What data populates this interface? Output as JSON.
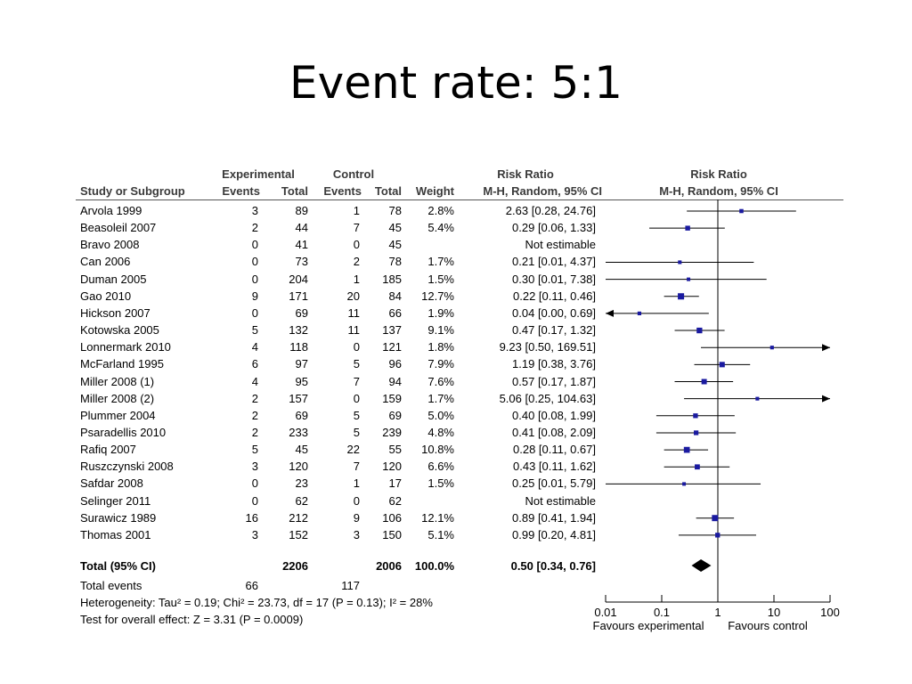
{
  "title": "Event rate: 5:1",
  "table": {
    "group_headers": {
      "experimental": "Experimental",
      "control": "Control",
      "risk_ratio_text": "Risk Ratio",
      "risk_ratio_plot": "Risk Ratio"
    },
    "columns": {
      "study": "Study or Subgroup",
      "exp_events": "Events",
      "exp_total": "Total",
      "ctl_events": "Events",
      "ctl_total": "Total",
      "weight": "Weight",
      "rr_text": "M-H, Random, 95% CI",
      "rr_plot": "M-H, Random, 95% CI"
    },
    "rows": [
      {
        "study": "Arvola 1999",
        "exp_events": "3",
        "exp_total": "89",
        "ctl_events": "1",
        "ctl_total": "78",
        "weight": "2.8%",
        "ci_text": "2.63 [0.28, 24.76]"
      },
      {
        "study": "Beasoleil 2007",
        "exp_events": "2",
        "exp_total": "44",
        "ctl_events": "7",
        "ctl_total": "45",
        "weight": "5.4%",
        "ci_text": "0.29 [0.06, 1.33]"
      },
      {
        "study": "Bravo 2008",
        "exp_events": "0",
        "exp_total": "41",
        "ctl_events": "0",
        "ctl_total": "45",
        "weight": "",
        "ci_text": "Not estimable"
      },
      {
        "study": "Can 2006",
        "exp_events": "0",
        "exp_total": "73",
        "ctl_events": "2",
        "ctl_total": "78",
        "weight": "1.7%",
        "ci_text": "0.21 [0.01, 4.37]"
      },
      {
        "study": "Duman 2005",
        "exp_events": "0",
        "exp_total": "204",
        "ctl_events": "1",
        "ctl_total": "185",
        "weight": "1.5%",
        "ci_text": "0.30 [0.01, 7.38]"
      },
      {
        "study": "Gao 2010",
        "exp_events": "9",
        "exp_total": "171",
        "ctl_events": "20",
        "ctl_total": "84",
        "weight": "12.7%",
        "ci_text": "0.22 [0.11, 0.46]"
      },
      {
        "study": "Hickson 2007",
        "exp_events": "0",
        "exp_total": "69",
        "ctl_events": "11",
        "ctl_total": "66",
        "weight": "1.9%",
        "ci_text": "0.04 [0.00, 0.69]"
      },
      {
        "study": "Kotowska 2005",
        "exp_events": "5",
        "exp_total": "132",
        "ctl_events": "11",
        "ctl_total": "137",
        "weight": "9.1%",
        "ci_text": "0.47 [0.17, 1.32]"
      },
      {
        "study": "Lonnermark 2010",
        "exp_events": "4",
        "exp_total": "118",
        "ctl_events": "0",
        "ctl_total": "121",
        "weight": "1.8%",
        "ci_text": "9.23 [0.50, 169.51]"
      },
      {
        "study": "McFarland 1995",
        "exp_events": "6",
        "exp_total": "97",
        "ctl_events": "5",
        "ctl_total": "96",
        "weight": "7.9%",
        "ci_text": "1.19 [0.38, 3.76]"
      },
      {
        "study": "Miller 2008 (1)",
        "exp_events": "4",
        "exp_total": "95",
        "ctl_events": "7",
        "ctl_total": "94",
        "weight": "7.6%",
        "ci_text": "0.57 [0.17, 1.87]"
      },
      {
        "study": "Miller 2008 (2)",
        "exp_events": "2",
        "exp_total": "157",
        "ctl_events": "0",
        "ctl_total": "159",
        "weight": "1.7%",
        "ci_text": "5.06 [0.25, 104.63]"
      },
      {
        "study": "Plummer 2004",
        "exp_events": "2",
        "exp_total": "69",
        "ctl_events": "5",
        "ctl_total": "69",
        "weight": "5.0%",
        "ci_text": "0.40 [0.08, 1.99]"
      },
      {
        "study": "Psaradellis 2010",
        "exp_events": "2",
        "exp_total": "233",
        "ctl_events": "5",
        "ctl_total": "239",
        "weight": "4.8%",
        "ci_text": "0.41 [0.08, 2.09]"
      },
      {
        "study": "Rafiq 2007",
        "exp_events": "5",
        "exp_total": "45",
        "ctl_events": "22",
        "ctl_total": "55",
        "weight": "10.8%",
        "ci_text": "0.28 [0.11, 0.67]"
      },
      {
        "study": "Ruszczynski 2008",
        "exp_events": "3",
        "exp_total": "120",
        "ctl_events": "7",
        "ctl_total": "120",
        "weight": "6.6%",
        "ci_text": "0.43 [0.11, 1.62]"
      },
      {
        "study": "Safdar 2008",
        "exp_events": "0",
        "exp_total": "23",
        "ctl_events": "1",
        "ctl_total": "17",
        "weight": "1.5%",
        "ci_text": "0.25 [0.01, 5.79]"
      },
      {
        "study": "Selinger 2011",
        "exp_events": "0",
        "exp_total": "62",
        "ctl_events": "0",
        "ctl_total": "62",
        "weight": "",
        "ci_text": "Not estimable"
      },
      {
        "study": "Surawicz 1989",
        "exp_events": "16",
        "exp_total": "212",
        "ctl_events": "9",
        "ctl_total": "106",
        "weight": "12.1%",
        "ci_text": "0.89 [0.41, 1.94]"
      },
      {
        "study": "Thomas 2001",
        "exp_events": "3",
        "exp_total": "152",
        "ctl_events": "3",
        "ctl_total": "150",
        "weight": "5.1%",
        "ci_text": "0.99 [0.20, 4.81]"
      }
    ],
    "total": {
      "label": "Total (95% CI)",
      "exp_total": "2206",
      "ctl_total": "2006",
      "weight": "100.0%",
      "ci_text": "0.50 [0.34, 0.76]"
    },
    "total_events": {
      "label": "Total events",
      "exp_events": "66",
      "ctl_events": "117"
    },
    "heterogeneity": "Heterogeneity: Tau² = 0.19; Chi² = 23.73, df = 17 (P = 0.13); I² = 28%",
    "overall_effect": "Test for overall effect: Z = 3.31 (P = 0.0009)"
  },
  "chart_data": {
    "type": "scatter",
    "subtype": "forest-plot",
    "title": "Risk Ratio",
    "subtitle": "M-H, Random, 95% CI",
    "x_scale": "log",
    "xlim": [
      0.01,
      100
    ],
    "x_ticks": [
      0.01,
      0.1,
      1,
      10,
      100
    ],
    "x_tick_labels": [
      "0.01",
      "0.1",
      "1",
      "10",
      "100"
    ],
    "reference_line": 1,
    "favours_left": "Favours experimental",
    "favours_right": "Favours control",
    "marker_color": "#1a1aa0",
    "studies": [
      {
        "study": "Arvola 1999",
        "rr": 2.63,
        "lower": 0.28,
        "upper": 24.76,
        "weight": 2.8
      },
      {
        "study": "Beasoleil 2007",
        "rr": 0.29,
        "lower": 0.06,
        "upper": 1.33,
        "weight": 5.4
      },
      {
        "study": "Bravo 2008",
        "rr": null,
        "lower": null,
        "upper": null,
        "weight": null
      },
      {
        "study": "Can 2006",
        "rr": 0.21,
        "lower": 0.01,
        "upper": 4.37,
        "weight": 1.7
      },
      {
        "study": "Duman 2005",
        "rr": 0.3,
        "lower": 0.01,
        "upper": 7.38,
        "weight": 1.5
      },
      {
        "study": "Gao 2010",
        "rr": 0.22,
        "lower": 0.11,
        "upper": 0.46,
        "weight": 12.7
      },
      {
        "study": "Hickson 2007",
        "rr": 0.04,
        "lower": 0.0,
        "upper": 0.69,
        "weight": 1.9
      },
      {
        "study": "Kotowska 2005",
        "rr": 0.47,
        "lower": 0.17,
        "upper": 1.32,
        "weight": 9.1
      },
      {
        "study": "Lonnermark 2010",
        "rr": 9.23,
        "lower": 0.5,
        "upper": 169.51,
        "weight": 1.8
      },
      {
        "study": "McFarland 1995",
        "rr": 1.19,
        "lower": 0.38,
        "upper": 3.76,
        "weight": 7.9
      },
      {
        "study": "Miller 2008 (1)",
        "rr": 0.57,
        "lower": 0.17,
        "upper": 1.87,
        "weight": 7.6
      },
      {
        "study": "Miller 2008 (2)",
        "rr": 5.06,
        "lower": 0.25,
        "upper": 104.63,
        "weight": 1.7
      },
      {
        "study": "Plummer 2004",
        "rr": 0.4,
        "lower": 0.08,
        "upper": 1.99,
        "weight": 5.0
      },
      {
        "study": "Psaradellis 2010",
        "rr": 0.41,
        "lower": 0.08,
        "upper": 2.09,
        "weight": 4.8
      },
      {
        "study": "Rafiq 2007",
        "rr": 0.28,
        "lower": 0.11,
        "upper": 0.67,
        "weight": 10.8
      },
      {
        "study": "Ruszczynski 2008",
        "rr": 0.43,
        "lower": 0.11,
        "upper": 1.62,
        "weight": 6.6
      },
      {
        "study": "Safdar 2008",
        "rr": 0.25,
        "lower": 0.01,
        "upper": 5.79,
        "weight": 1.5
      },
      {
        "study": "Selinger 2011",
        "rr": null,
        "lower": null,
        "upper": null,
        "weight": null
      },
      {
        "study": "Surawicz 1989",
        "rr": 0.89,
        "lower": 0.41,
        "upper": 1.94,
        "weight": 12.1
      },
      {
        "study": "Thomas 2001",
        "rr": 0.99,
        "lower": 0.2,
        "upper": 4.81,
        "weight": 5.1
      }
    ],
    "pooled": {
      "label": "Total (95% CI)",
      "rr": 0.5,
      "lower": 0.34,
      "upper": 0.76
    }
  }
}
